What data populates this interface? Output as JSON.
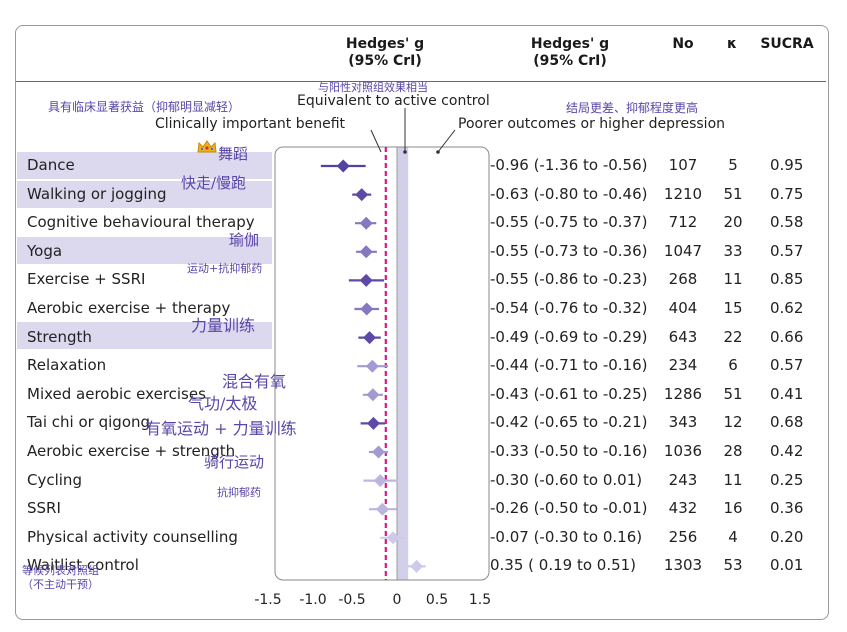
{
  "header": {
    "col_hedges_plot": "Hedges' g\n(95% CrI)",
    "col_hedges_text": "Hedges' g\n(95% CrI)",
    "col_no": "No",
    "col_k": "κ",
    "col_sucra": "SUCRA"
  },
  "annotations": {
    "clinical_cn": "具有临床显著获益（抑郁明显减轻）",
    "clinical_en": "Clinically important benefit",
    "equivalent_cn": "与阳性对照组效果相当",
    "equivalent_en": "Equivalent to active control",
    "poorer_cn": "结局更差、抑郁程度更高",
    "poorer_en": "Poorer outcomes or higher depression"
  },
  "rows": [
    {
      "label": "Dance",
      "cn": "舞蹈",
      "ci": "-0.96 (-1.36 to -0.56)",
      "no": "107",
      "k": "5",
      "sucra": "0.95"
    },
    {
      "label": "Walking or jogging",
      "cn": "快走/慢跑",
      "ci": "-0.63 (-0.80 to -0.46)",
      "no": "1210",
      "k": "51",
      "sucra": "0.75"
    },
    {
      "label": "Cognitive behavioural therapy",
      "cn": "",
      "ci": "-0.55 (-0.75 to -0.37)",
      "no": "712",
      "k": "20",
      "sucra": "0.58"
    },
    {
      "label": "Yoga",
      "cn": "瑜伽",
      "ci": "-0.55 (-0.73 to -0.36)",
      "no": "1047",
      "k": "33",
      "sucra": "0.57"
    },
    {
      "label": "Exercise + SSRI",
      "cn": "运动+抗抑郁药",
      "ci": "-0.55 (-0.86 to -0.23)",
      "no": "268",
      "k": "11",
      "sucra": "0.85"
    },
    {
      "label": "Aerobic exercise + therapy",
      "cn": "",
      "ci": "-0.54 (-0.76 to -0.32)",
      "no": "404",
      "k": "15",
      "sucra": "0.62"
    },
    {
      "label": "Strength",
      "cn": "力量训练",
      "ci": "-0.49 (-0.69 to -0.29)",
      "no": "643",
      "k": "22",
      "sucra": "0.66"
    },
    {
      "label": "Relaxation",
      "cn": "",
      "ci": "-0.44 (-0.71 to -0.16)",
      "no": "234",
      "k": "6",
      "sucra": "0.57"
    },
    {
      "label": "Mixed aerobic exercises",
      "cn": "混合有氧",
      "ci": "-0.43 (-0.61 to -0.25)",
      "no": "1286",
      "k": "51",
      "sucra": "0.41"
    },
    {
      "label": "Tai chi or qigong",
      "cn": "气功/太极",
      "ci": "-0.42 (-0.65 to -0.21)",
      "no": "343",
      "k": "12",
      "sucra": "0.68"
    },
    {
      "label": "Aerobic exercise + strength",
      "cn": "有氧运动 + 力量训练",
      "ci": "-0.33 (-0.50 to -0.16)",
      "no": "1036",
      "k": "28",
      "sucra": "0.42"
    },
    {
      "label": "Cycling",
      "cn": "骑行运动",
      "ci": "-0.30 (-0.60 to 0.01)",
      "no": "243",
      "k": "11",
      "sucra": "0.25"
    },
    {
      "label": "SSRI",
      "cn": "抗抑郁药",
      "ci": "-0.26 (-0.50 to -0.01)",
      "no": "432",
      "k": "16",
      "sucra": "0.36"
    },
    {
      "label": "Physical activity counselling",
      "cn": "",
      "ci": "-0.07 (-0.30 to 0.16)",
      "no": "256",
      "k": "4",
      "sucra": "0.20"
    },
    {
      "label": "Waitlist control",
      "cn": "等候列表对照组\n（不主动干预）",
      "ci": "0.35 ( 0.19 to 0.51)",
      "no": "1303",
      "k": "53",
      "sucra": "0.01"
    }
  ],
  "chart_data": {
    "type": "forest",
    "x_ticks": [
      "-1.5",
      "-1.0",
      "-0.5",
      "0",
      "0.5",
      "1.5"
    ],
    "x_range": [
      -1.5,
      1.5
    ],
    "clinical_threshold": -0.2,
    "equivalence_band": [
      0,
      0.2
    ],
    "estimates": [
      {
        "label": "Dance",
        "g": -0.96,
        "lo": -1.36,
        "hi": -0.56
      },
      {
        "label": "Walking or jogging",
        "g": -0.63,
        "lo": -0.8,
        "hi": -0.46
      },
      {
        "label": "Cognitive behavioural therapy",
        "g": -0.55,
        "lo": -0.75,
        "hi": -0.37
      },
      {
        "label": "Yoga",
        "g": -0.55,
        "lo": -0.73,
        "hi": -0.36
      },
      {
        "label": "Exercise + SSRI",
        "g": -0.55,
        "lo": -0.86,
        "hi": -0.23
      },
      {
        "label": "Aerobic exercise + therapy",
        "g": -0.54,
        "lo": -0.76,
        "hi": -0.32
      },
      {
        "label": "Strength",
        "g": -0.49,
        "lo": -0.69,
        "hi": -0.29
      },
      {
        "label": "Relaxation",
        "g": -0.44,
        "lo": -0.71,
        "hi": -0.16
      },
      {
        "label": "Mixed aerobic exercises",
        "g": -0.43,
        "lo": -0.61,
        "hi": -0.25
      },
      {
        "label": "Tai chi or qigong",
        "g": -0.42,
        "lo": -0.65,
        "hi": -0.21
      },
      {
        "label": "Aerobic exercise + strength",
        "g": -0.33,
        "lo": -0.5,
        "hi": -0.16
      },
      {
        "label": "Cycling",
        "g": -0.3,
        "lo": -0.6,
        "hi": 0.01
      },
      {
        "label": "SSRI",
        "g": -0.26,
        "lo": -0.5,
        "hi": -0.01
      },
      {
        "label": "Physical activity counselling",
        "g": -0.07,
        "lo": -0.3,
        "hi": 0.16
      },
      {
        "label": "Waitlist control",
        "g": 0.35,
        "lo": 0.19,
        "hi": 0.51
      }
    ],
    "colors": {
      "highlight_row": "#dcd9ef",
      "threshold_line": "#d6198a",
      "equivalence_band": "#d2d0e9",
      "chinese_text": "#5a45a8"
    }
  }
}
